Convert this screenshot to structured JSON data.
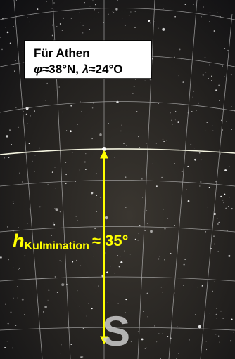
{
  "info_box": {
    "title": "Für Athen",
    "coordinates": [
      "φ",
      "≈38°N, ",
      "λ",
      "≈24°O"
    ]
  },
  "altitude_label": {
    "symbol": "h",
    "subscript": "Kulmination",
    "value": "≈ 35°"
  },
  "direction": "S"
}
